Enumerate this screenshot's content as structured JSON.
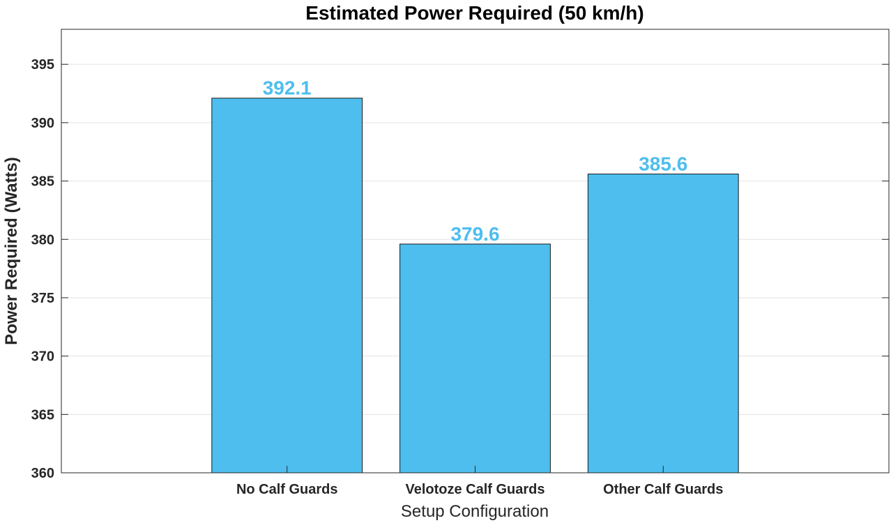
{
  "chart_data": {
    "type": "bar",
    "title": "Estimated Power Required (50 km/h)",
    "xlabel": "Setup Configuration",
    "ylabel": "Power Required (Watts)",
    "categories": [
      "No Calf Guards",
      "Velotoze Calf Guards",
      "Other Calf Guards"
    ],
    "values": [
      392.1,
      379.6,
      385.6
    ],
    "data_labels": [
      "392.1",
      "379.6",
      "385.6"
    ],
    "ylim": [
      360,
      398
    ],
    "yticks": [
      360,
      365,
      370,
      375,
      380,
      385,
      390,
      395
    ],
    "grid": true,
    "bar_color": "#4DBEEE",
    "label_color": "#4DBEEE"
  }
}
